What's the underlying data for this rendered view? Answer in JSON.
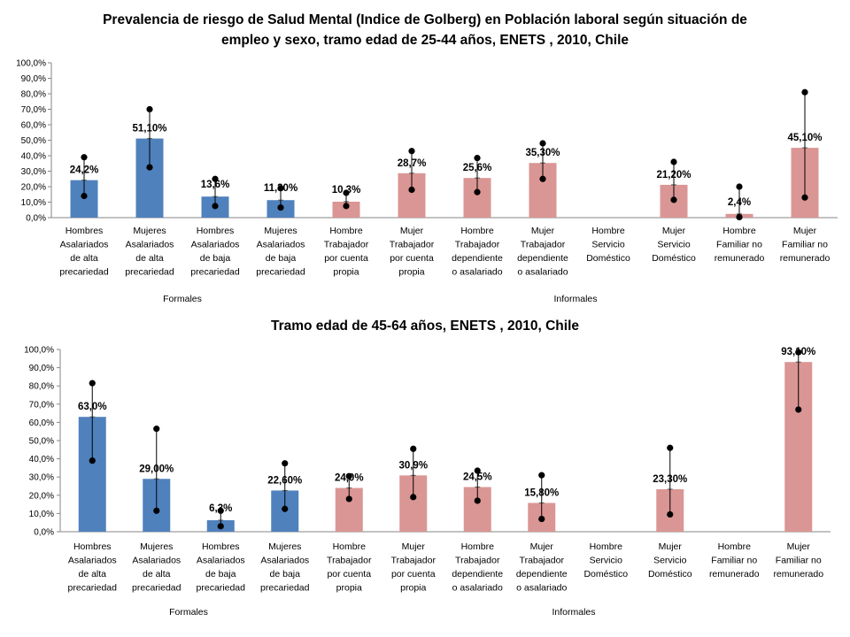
{
  "colors": {
    "formal": "#4F81BD",
    "informal": "#DA9694"
  },
  "chart_data": [
    {
      "type": "bar",
      "title_lines": [
        "Prevalencia de riesgo de Salud Mental (Indice de Golberg) en Población laboral  según situación de",
        "empleo y sexo, tramo edad de 25-44 años, ENETS , 2010, Chile"
      ],
      "categories": [
        [
          "Hombres",
          "Asalariados",
          "de alta",
          "precariedad"
        ],
        [
          "Mujeres",
          "Asalariados",
          "de alta",
          "precariedad"
        ],
        [
          "Hombres",
          "Asalariados",
          "de baja",
          "precariedad"
        ],
        [
          "Mujeres",
          "Asalariados",
          "de baja",
          "precariedad"
        ],
        [
          "Hombre",
          "Trabajador",
          "por cuenta",
          "propia"
        ],
        [
          "Mujer",
          "Trabajador",
          "por cuenta",
          "propia"
        ],
        [
          "Hombre",
          "Trabajador",
          "dependiente",
          "o asalariado"
        ],
        [
          "Mujer",
          "Trabajador",
          "dependiente",
          "o asalariado"
        ],
        [
          "Hombre",
          "Servicio",
          "Doméstico"
        ],
        [
          "Mujer",
          "Servicio",
          "Doméstico"
        ],
        [
          "Hombre",
          "Familiar no",
          "remunerado"
        ],
        [
          "Mujer",
          "Familiar no",
          "remunerado"
        ]
      ],
      "groups": [
        {
          "label": "Formales",
          "count": 4
        },
        {
          "label": "Informales",
          "count": 8
        }
      ],
      "values": [
        24.2,
        51.1,
        13.6,
        11.3,
        10.3,
        28.7,
        25.6,
        35.3,
        null,
        21.2,
        2.4,
        45.1
      ],
      "error_low": [
        14,
        32.5,
        7.5,
        6.5,
        7.5,
        18,
        16.5,
        25,
        null,
        11.5,
        0.3,
        13
      ],
      "error_high": [
        39,
        70,
        25,
        19,
        16,
        43,
        38.5,
        48,
        null,
        36,
        20,
        81
      ],
      "data_labels": [
        "24,2%",
        "51,10%",
        "13,6%",
        "11,30%",
        "10,3%",
        "28,7%",
        "25,6%",
        "35,30%",
        "",
        "21,20%",
        "2,4%",
        "45,10%"
      ],
      "y_ticks": [
        "0,0%",
        "10,0%",
        "20,0%",
        "30,0%",
        "40,0%",
        "50,0%",
        "60,0%",
        "70,0%",
        "80,0%",
        "90,0%",
        "100,0%"
      ],
      "ylim": [
        0,
        100
      ]
    },
    {
      "type": "bar",
      "title_lines": [
        "Tramo edad de 45-64 años, ENETS , 2010, Chile"
      ],
      "categories": [
        [
          "Hombres",
          "Asalariados",
          "de alta",
          "precariedad"
        ],
        [
          "Mujeres",
          "Asalariados",
          "de alta",
          "precariedad"
        ],
        [
          "Hombres",
          "Asalariados",
          "de baja",
          "precariedad"
        ],
        [
          "Mujeres",
          "Asalariados",
          "de baja",
          "precariedad"
        ],
        [
          "Hombre",
          "Trabajador",
          "por cuenta",
          "propia"
        ],
        [
          "Mujer",
          "Trabajador",
          "por cuenta",
          "propia"
        ],
        [
          "Hombre",
          "Trabajador",
          "dependiente",
          "o asalariado"
        ],
        [
          "Mujer",
          "Trabajador",
          "dependiente",
          "o asalariado"
        ],
        [
          "Hombre",
          "Servicio",
          "Doméstico"
        ],
        [
          "Mujer",
          "Servicio",
          "Doméstico"
        ],
        [
          "Hombre",
          "Familiar no",
          "remunerado"
        ],
        [
          "Mujer",
          "Familiar no",
          "remunerado"
        ]
      ],
      "groups": [
        {
          "label": "Formales",
          "count": 4
        },
        {
          "label": "Informales",
          "count": 8
        }
      ],
      "values": [
        63.0,
        29.0,
        6.3,
        22.6,
        24.0,
        30.9,
        24.5,
        15.8,
        null,
        23.3,
        null,
        93.1
      ],
      "error_low": [
        39,
        11.5,
        3,
        12.5,
        18,
        19,
        17,
        7,
        null,
        9.5,
        null,
        67
      ],
      "error_high": [
        81.5,
        56.5,
        11.5,
        37.5,
        30.5,
        45.5,
        33.5,
        31,
        null,
        46,
        null,
        98.5
      ],
      "data_labels": [
        "63,0%",
        "29,00%",
        "6,3%",
        "22,60%",
        "24,0%",
        "30,9%",
        "24,5%",
        "15,80%",
        "",
        "23,30%",
        "",
        "93,10%"
      ],
      "y_ticks": [
        "0,0%",
        "10,0%",
        "20,0%",
        "30,0%",
        "40,0%",
        "50,0%",
        "60,0%",
        "70,0%",
        "80,0%",
        "90,0%",
        "100,0%"
      ],
      "ylim": [
        0,
        100
      ]
    }
  ]
}
